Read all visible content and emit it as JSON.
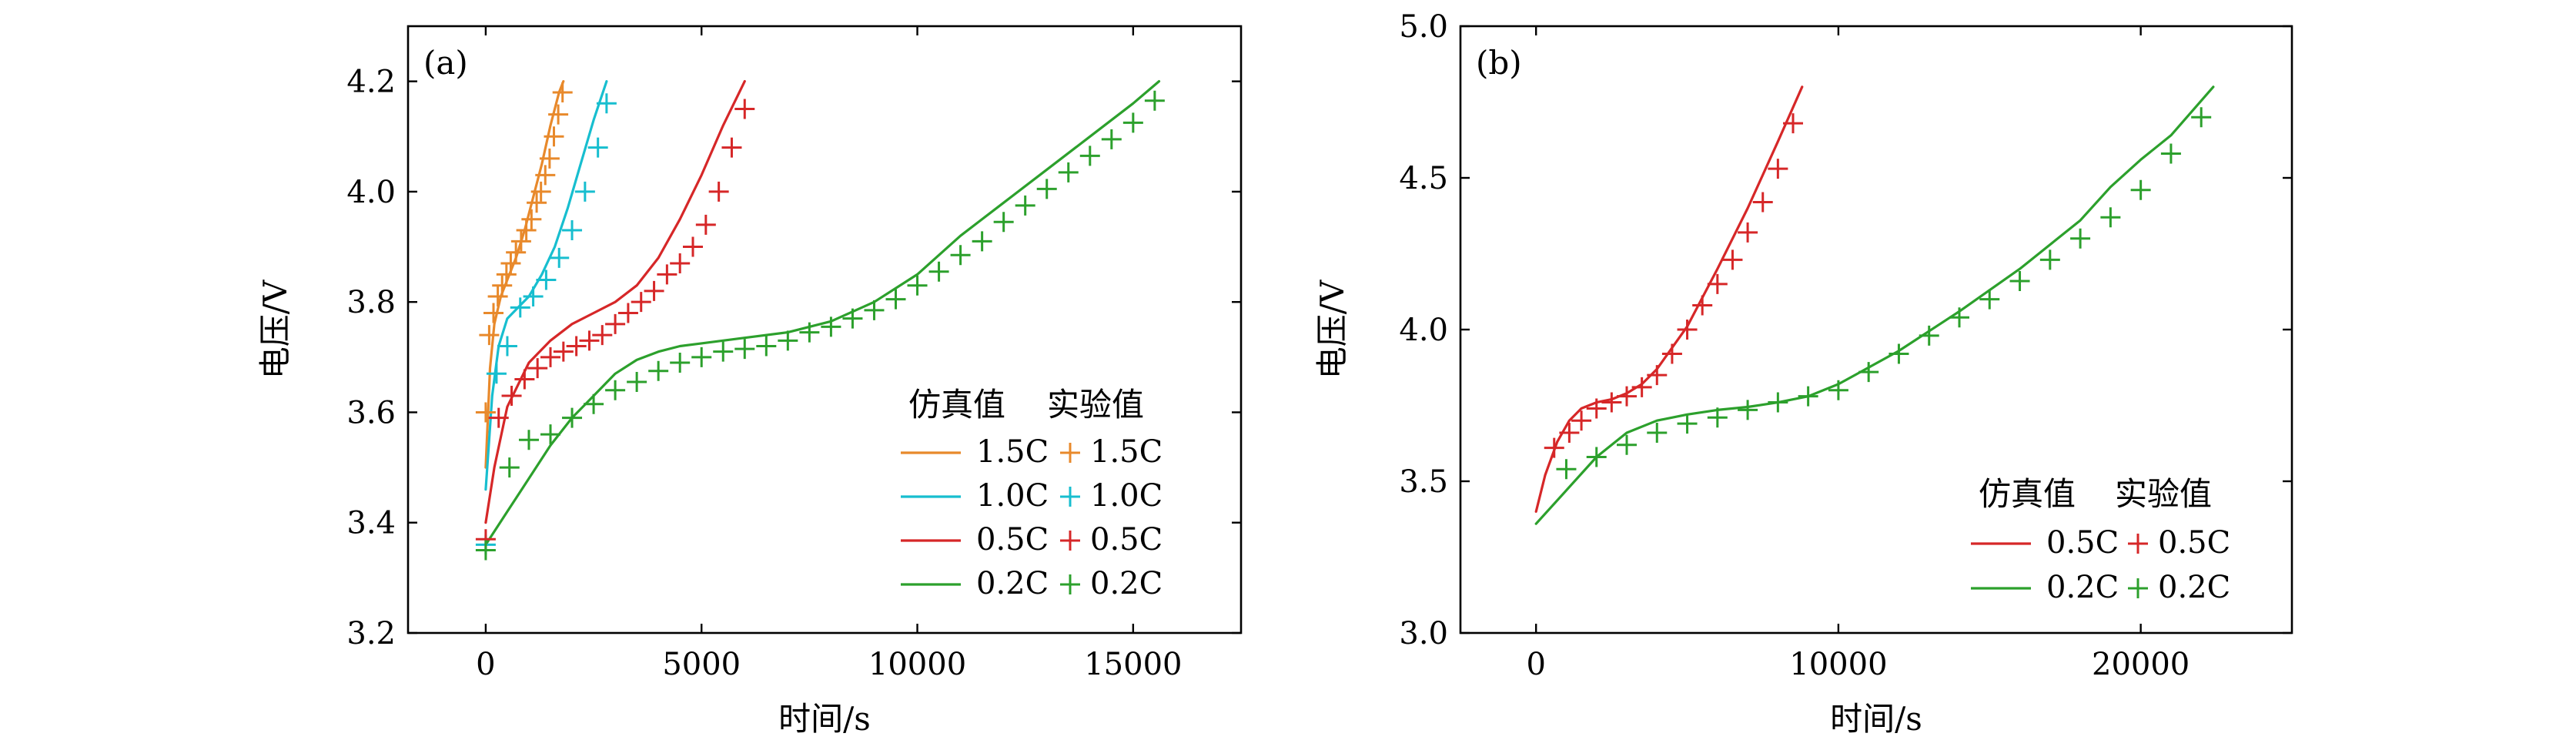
{
  "chart_data": [
    {
      "type": "line",
      "panel_label": "(a)",
      "xlabel": "时间/s",
      "ylabel": "电压/V",
      "xlim": [
        -1800,
        17500
      ],
      "ylim": [
        3.2,
        4.3
      ],
      "xticks": [
        0,
        5000,
        10000,
        15000
      ],
      "yticks": [
        3.2,
        3.4,
        3.6,
        3.8,
        4.0,
        4.2
      ],
      "xtick_labels": [
        "0",
        "5000",
        "10000",
        "15000"
      ],
      "ytick_labels": [
        "3.2",
        "3.4",
        "3.6",
        "3.8",
        "4.0",
        "4.2"
      ],
      "legend": {
        "placement": "bottom-right",
        "sim_header": "仿真值",
        "exp_header": "实验值",
        "entries": [
          {
            "sim_label": "1.5C",
            "exp_label": "1.5C",
            "color": "#e8892b"
          },
          {
            "sim_label": "1.0C",
            "exp_label": "1.0C",
            "color": "#17becf"
          },
          {
            "sim_label": "0.5C",
            "exp_label": "0.5C",
            "color": "#d62728"
          },
          {
            "sim_label": "0.2C",
            "exp_label": "0.2C",
            "color": "#2ca02c"
          }
        ]
      },
      "series": [
        {
          "name": "1.5C",
          "kind": "simulation",
          "color": "#e8892b",
          "x": [
            0,
            100,
            200,
            350,
            500,
            700,
            900,
            1100,
            1300,
            1500,
            1700,
            1800
          ],
          "y": [
            3.5,
            3.68,
            3.76,
            3.81,
            3.84,
            3.88,
            3.93,
            3.99,
            4.05,
            4.12,
            4.18,
            4.2
          ]
        },
        {
          "name": "1.0C",
          "kind": "simulation",
          "color": "#17becf",
          "x": [
            0,
            150,
            300,
            500,
            750,
            1000,
            1300,
            1600,
            1900,
            2200,
            2500,
            2800
          ],
          "y": [
            3.46,
            3.63,
            3.72,
            3.77,
            3.79,
            3.81,
            3.85,
            3.9,
            3.97,
            4.05,
            4.13,
            4.2
          ]
        },
        {
          "name": "0.5C",
          "kind": "simulation",
          "color": "#d62728",
          "x": [
            0,
            200,
            500,
            1000,
            1500,
            2000,
            2500,
            3000,
            3500,
            4000,
            4500,
            5000,
            5500,
            6000
          ],
          "y": [
            3.4,
            3.5,
            3.61,
            3.69,
            3.73,
            3.76,
            3.78,
            3.8,
            3.83,
            3.88,
            3.95,
            4.03,
            4.12,
            4.2
          ]
        },
        {
          "name": "0.2C",
          "kind": "simulation",
          "color": "#2ca02c",
          "x": [
            0,
            500,
            1000,
            1500,
            2000,
            2500,
            3000,
            3500,
            4000,
            4500,
            5000,
            6000,
            7000,
            8000,
            9000,
            10000,
            11000,
            12000,
            13000,
            14000,
            15000,
            15600
          ],
          "y": [
            3.36,
            3.42,
            3.48,
            3.54,
            3.59,
            3.63,
            3.67,
            3.695,
            3.71,
            3.72,
            3.725,
            3.735,
            3.745,
            3.765,
            3.8,
            3.85,
            3.92,
            3.98,
            4.04,
            4.1,
            4.16,
            4.2
          ]
        },
        {
          "name": "1.5C",
          "kind": "experiment",
          "color": "#e8892b",
          "x": [
            0,
            80,
            180,
            280,
            380,
            480,
            580,
            700,
            820,
            940,
            1060,
            1180,
            1280,
            1380,
            1480,
            1580,
            1680,
            1780
          ],
          "y": [
            3.6,
            3.74,
            3.78,
            3.81,
            3.83,
            3.85,
            3.87,
            3.89,
            3.91,
            3.93,
            3.95,
            3.98,
            4.0,
            4.03,
            4.06,
            4.1,
            4.14,
            4.18
          ]
        },
        {
          "name": "1.0C",
          "kind": "experiment",
          "color": "#17becf",
          "x": [
            0,
            250,
            500,
            800,
            1100,
            1400,
            1700,
            2000,
            2300,
            2600,
            2800
          ],
          "y": [
            3.36,
            3.67,
            3.72,
            3.79,
            3.81,
            3.84,
            3.88,
            3.93,
            4.0,
            4.08,
            4.16
          ]
        },
        {
          "name": "0.5C",
          "kind": "experiment",
          "color": "#d62728",
          "x": [
            0,
            300,
            600,
            900,
            1200,
            1500,
            1800,
            2100,
            2400,
            2700,
            3000,
            3300,
            3600,
            3900,
            4200,
            4500,
            4800,
            5100,
            5400,
            5700,
            6000
          ],
          "y": [
            3.37,
            3.59,
            3.63,
            3.66,
            3.68,
            3.7,
            3.71,
            3.72,
            3.73,
            3.74,
            3.76,
            3.78,
            3.8,
            3.82,
            3.85,
            3.87,
            3.9,
            3.94,
            4.0,
            4.08,
            4.15
          ]
        },
        {
          "name": "0.2C",
          "kind": "experiment",
          "color": "#2ca02c",
          "x": [
            0,
            550,
            1000,
            1500,
            2000,
            2500,
            3000,
            3500,
            4000,
            4500,
            5000,
            5500,
            6000,
            6500,
            7000,
            7500,
            8000,
            8500,
            9000,
            9500,
            10000,
            10500,
            11000,
            11500,
            12000,
            12500,
            13000,
            13500,
            14000,
            14500,
            15000,
            15500
          ],
          "y": [
            3.35,
            3.5,
            3.55,
            3.56,
            3.59,
            3.615,
            3.64,
            3.655,
            3.675,
            3.69,
            3.7,
            3.71,
            3.715,
            3.72,
            3.73,
            3.745,
            3.755,
            3.77,
            3.785,
            3.805,
            3.83,
            3.855,
            3.885,
            3.91,
            3.945,
            3.975,
            4.005,
            4.035,
            4.065,
            4.095,
            4.125,
            4.165
          ]
        }
      ]
    },
    {
      "type": "line",
      "panel_label": "(b)",
      "xlabel": "时间/s",
      "ylabel": "电压/V",
      "xlim": [
        -2500,
        25000
      ],
      "ylim": [
        3.0,
        5.0
      ],
      "xticks": [
        0,
        10000,
        20000
      ],
      "yticks": [
        3.0,
        3.5,
        4.0,
        4.5,
        5.0
      ],
      "xtick_labels": [
        "0",
        "10000",
        "20000"
      ],
      "ytick_labels": [
        "3.0",
        "3.5",
        "4.0",
        "4.5",
        "5.0"
      ],
      "legend": {
        "placement": "bottom-right",
        "sim_header": "仿真值",
        "exp_header": "实验值",
        "entries": [
          {
            "sim_label": "0.5C",
            "exp_label": "0.5C",
            "color": "#d62728"
          },
          {
            "sim_label": "0.2C",
            "exp_label": "0.2C",
            "color": "#2ca02c"
          }
        ]
      },
      "series": [
        {
          "name": "0.5C",
          "kind": "simulation",
          "color": "#d62728",
          "x": [
            0,
            300,
            700,
            1100,
            1500,
            2000,
            2500,
            3000,
            3500,
            4000,
            5000,
            6000,
            7000,
            8000,
            8800
          ],
          "y": [
            3.4,
            3.52,
            3.63,
            3.7,
            3.74,
            3.76,
            3.77,
            3.79,
            3.82,
            3.87,
            4.01,
            4.2,
            4.4,
            4.62,
            4.8
          ]
        },
        {
          "name": "0.2C",
          "kind": "simulation",
          "color": "#2ca02c",
          "x": [
            0,
            1000,
            2000,
            3000,
            4000,
            5000,
            6000,
            7000,
            8000,
            9000,
            10000,
            12000,
            14000,
            16000,
            18000,
            19000,
            20000,
            21000,
            22400
          ],
          "y": [
            3.36,
            3.47,
            3.58,
            3.66,
            3.7,
            3.72,
            3.735,
            3.745,
            3.76,
            3.78,
            3.82,
            3.93,
            4.06,
            4.2,
            4.36,
            4.47,
            4.56,
            4.64,
            4.8
          ]
        },
        {
          "name": "0.5C",
          "kind": "experiment",
          "color": "#d62728",
          "x": [
            600,
            1100,
            1500,
            2000,
            2500,
            3000,
            3500,
            4000,
            4500,
            5000,
            5500,
            6000,
            6500,
            7000,
            7500,
            8000,
            8500
          ],
          "y": [
            3.61,
            3.66,
            3.7,
            3.74,
            3.76,
            3.78,
            3.81,
            3.85,
            3.92,
            4.0,
            4.08,
            4.15,
            4.23,
            4.32,
            4.42,
            4.53,
            4.68
          ]
        },
        {
          "name": "0.2C",
          "kind": "experiment",
          "color": "#2ca02c",
          "x": [
            1000,
            2000,
            3000,
            4000,
            5000,
            6000,
            7000,
            8000,
            9000,
            10000,
            11000,
            12000,
            13000,
            14000,
            15000,
            16000,
            17000,
            18000,
            19000,
            20000,
            21000,
            22000
          ],
          "y": [
            3.54,
            3.58,
            3.62,
            3.66,
            3.69,
            3.71,
            3.735,
            3.76,
            3.78,
            3.8,
            3.86,
            3.92,
            3.98,
            4.04,
            4.1,
            4.16,
            4.23,
            4.3,
            4.37,
            4.46,
            4.58,
            4.7
          ]
        }
      ]
    }
  ]
}
